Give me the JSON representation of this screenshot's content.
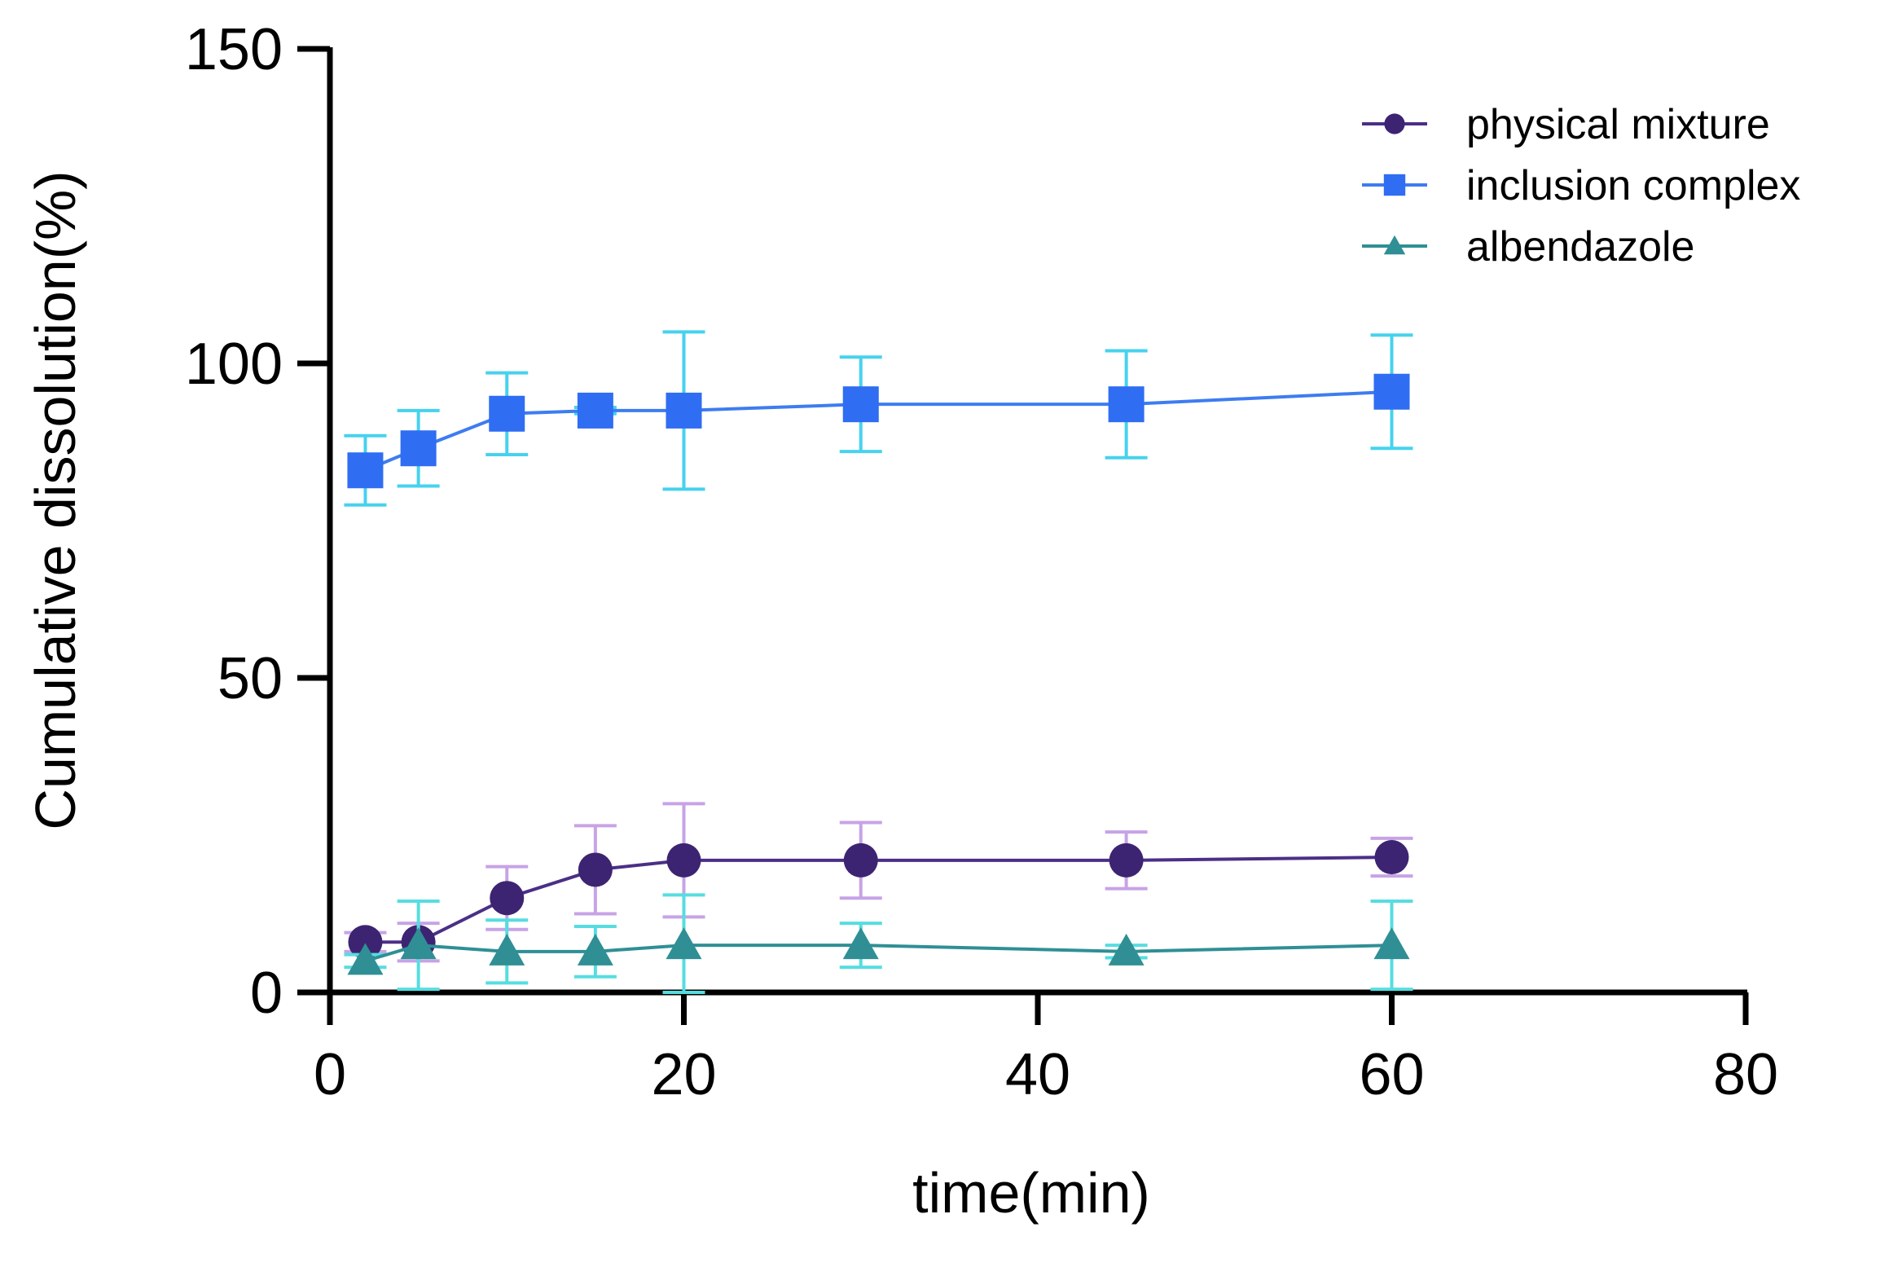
{
  "chart_data": {
    "type": "line",
    "title": "",
    "xlabel": "time(min)",
    "ylabel": "Cumulative dissolution(%)",
    "xlim": [
      0,
      80
    ],
    "ylim": [
      0,
      150
    ],
    "xticks": [
      "0",
      "20",
      "40",
      "60",
      "80"
    ],
    "yticks": [
      "0",
      "50",
      "100",
      "150"
    ],
    "xtick_values": [
      0,
      20,
      40,
      60,
      80
    ],
    "ytick_values": [
      0,
      50,
      100,
      150
    ],
    "grid": false,
    "legend_position": "top-right",
    "x": [
      2,
      5,
      10,
      15,
      20,
      30,
      45,
      60
    ],
    "series": [
      {
        "name": "physical mixture",
        "marker": "circle",
        "line_color": "#4b2f86",
        "marker_color": "#3d2472",
        "error_color": "#c7a3e6",
        "values": [
          8,
          8,
          15,
          19.5,
          21,
          21,
          21,
          21.5
        ],
        "errors": [
          1.5,
          3,
          5,
          7,
          9,
          6,
          4.5,
          3
        ]
      },
      {
        "name": "inclusion complex",
        "marker": "square",
        "line_color": "#3e7cf0",
        "marker_color": "#2f6df2",
        "error_color": "#46d2ee",
        "values": [
          83,
          86.5,
          92,
          92.5,
          92.5,
          93.5,
          93.5,
          95.5
        ],
        "errors": [
          5.5,
          6,
          6.5,
          0.5,
          12.5,
          7.5,
          8.5,
          9
        ]
      },
      {
        "name": "albendazole",
        "marker": "triangle",
        "line_color": "#2f8f95",
        "marker_color": "#2f8f95",
        "error_color": "#56dde0",
        "values": [
          5,
          7.5,
          6.5,
          6.5,
          7.5,
          7.5,
          6.5,
          7.5
        ],
        "errors": [
          1,
          7,
          5,
          4,
          8,
          3.5,
          1,
          7
        ]
      }
    ]
  }
}
